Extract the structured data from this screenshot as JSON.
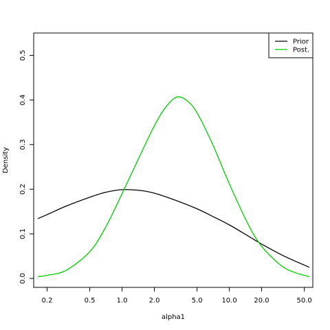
{
  "chart_data": {
    "type": "line",
    "title": "",
    "xlabel": "alpha1",
    "ylabel": "Density",
    "x_scale": "log",
    "xlim": [
      0.15,
      60
    ],
    "ylim": [
      -0.02,
      0.55
    ],
    "x_ticks": [
      0.2,
      0.5,
      1.0,
      2.0,
      5.0,
      10.0,
      20.0,
      50.0
    ],
    "x_tick_labels": [
      "0.2",
      "0.5",
      "1.0",
      "2.0",
      "5.0",
      "10.0",
      "20.0",
      "50.0"
    ],
    "y_ticks": [
      0.0,
      0.1,
      0.2,
      0.3,
      0.4,
      0.5
    ],
    "y_tick_labels": [
      "0.0",
      "0.1",
      "0.2",
      "0.3",
      "0.4",
      "0.5"
    ],
    "grid": false,
    "legend_position": "top-right",
    "series": [
      {
        "name": "Prior",
        "color": "#000000",
        "x": [
          0.164,
          0.2,
          0.3,
          0.5,
          0.7,
          1.0,
          1.5,
          2.0,
          3.0,
          5.0,
          7.0,
          10.0,
          15.0,
          20.0,
          30.0,
          40.0,
          55.8
        ],
        "y": [
          0.134,
          0.143,
          0.162,
          0.182,
          0.193,
          0.199,
          0.197,
          0.191,
          0.177,
          0.156,
          0.139,
          0.12,
          0.095,
          0.077,
          0.054,
          0.04,
          0.025
        ]
      },
      {
        "name": "Post.",
        "color": "#00cc00",
        "x": [
          0.164,
          0.2,
          0.3,
          0.5,
          0.7,
          1.0,
          1.5,
          2.0,
          2.5,
          3.2,
          4.0,
          5.0,
          7.0,
          10.0,
          15.0,
          20.0,
          30.0,
          40.0,
          55.8
        ],
        "y": [
          0.004,
          0.007,
          0.018,
          0.06,
          0.114,
          0.19,
          0.28,
          0.342,
          0.381,
          0.406,
          0.399,
          0.371,
          0.3,
          0.212,
          0.121,
          0.072,
          0.03,
          0.014,
          0.004
        ]
      }
    ]
  }
}
